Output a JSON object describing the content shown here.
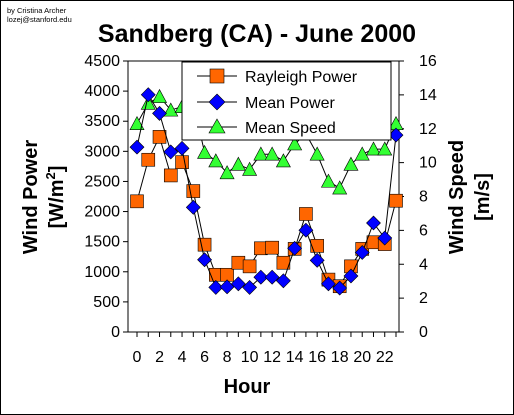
{
  "credit_lines": [
    "by Cristina Archer",
    "lozej@stanford.edu"
  ],
  "chart_data": {
    "type": "line",
    "title": "Sandberg (CA) - June 2000",
    "xlabel": "Hour",
    "ylabel_left_line1": "Wind Power",
    "ylabel_left_line2_prefix": "[W/m",
    "ylabel_left_line2_sup": "2",
    "ylabel_left_line2_suffix": "]",
    "ylabel_right_line1": "Wind Speed",
    "ylabel_right_line2": "[m/s]",
    "x": [
      0,
      1,
      2,
      3,
      4,
      5,
      6,
      7,
      8,
      9,
      10,
      11,
      12,
      13,
      14,
      15,
      16,
      17,
      18,
      19,
      20,
      21,
      22,
      23
    ],
    "xticks": [
      "0",
      "2",
      "4",
      "6",
      "8",
      "10",
      "12",
      "14",
      "16",
      "18",
      "20",
      "22"
    ],
    "xlim": [
      0,
      23
    ],
    "ylim_left": [
      0,
      4500
    ],
    "yticks_left": [
      "0",
      "500",
      "1000",
      "1500",
      "2000",
      "2500",
      "3000",
      "3500",
      "4000",
      "4500"
    ],
    "ylim_right": [
      0,
      16
    ],
    "yticks_right": [
      "0",
      "2",
      "4",
      "6",
      "8",
      "10",
      "12",
      "14",
      "16"
    ],
    "legend_position": "top-right",
    "series": [
      {
        "name": "Rayleigh Power",
        "axis": "left",
        "marker": "square",
        "color": "#ff6600",
        "values": [
          2170,
          2860,
          3240,
          2600,
          2820,
          2340,
          1450,
          950,
          950,
          1150,
          1090,
          1390,
          1400,
          1150,
          1380,
          1960,
          1430,
          870,
          760,
          1090,
          1380,
          1490,
          1460,
          2180
        ]
      },
      {
        "name": "Mean Power",
        "axis": "left",
        "marker": "diamond",
        "color": "#0000ff",
        "values": [
          3070,
          3940,
          3630,
          2990,
          3050,
          2070,
          1200,
          740,
          750,
          800,
          740,
          910,
          910,
          850,
          1390,
          1690,
          1190,
          800,
          730,
          930,
          1320,
          1810,
          1560,
          3270
        ]
      },
      {
        "name": "Mean Speed",
        "axis": "right",
        "marker": "triangle",
        "color": "#33ff33",
        "values": [
          12.3,
          13.5,
          13.9,
          13.1,
          13.3,
          13.5,
          10.6,
          10.1,
          9.4,
          9.9,
          9.6,
          10.5,
          10.5,
          10.1,
          11.1,
          11.7,
          10.5,
          8.9,
          8.5,
          9.9,
          10.5,
          10.8,
          10.8,
          12.3
        ]
      }
    ]
  }
}
